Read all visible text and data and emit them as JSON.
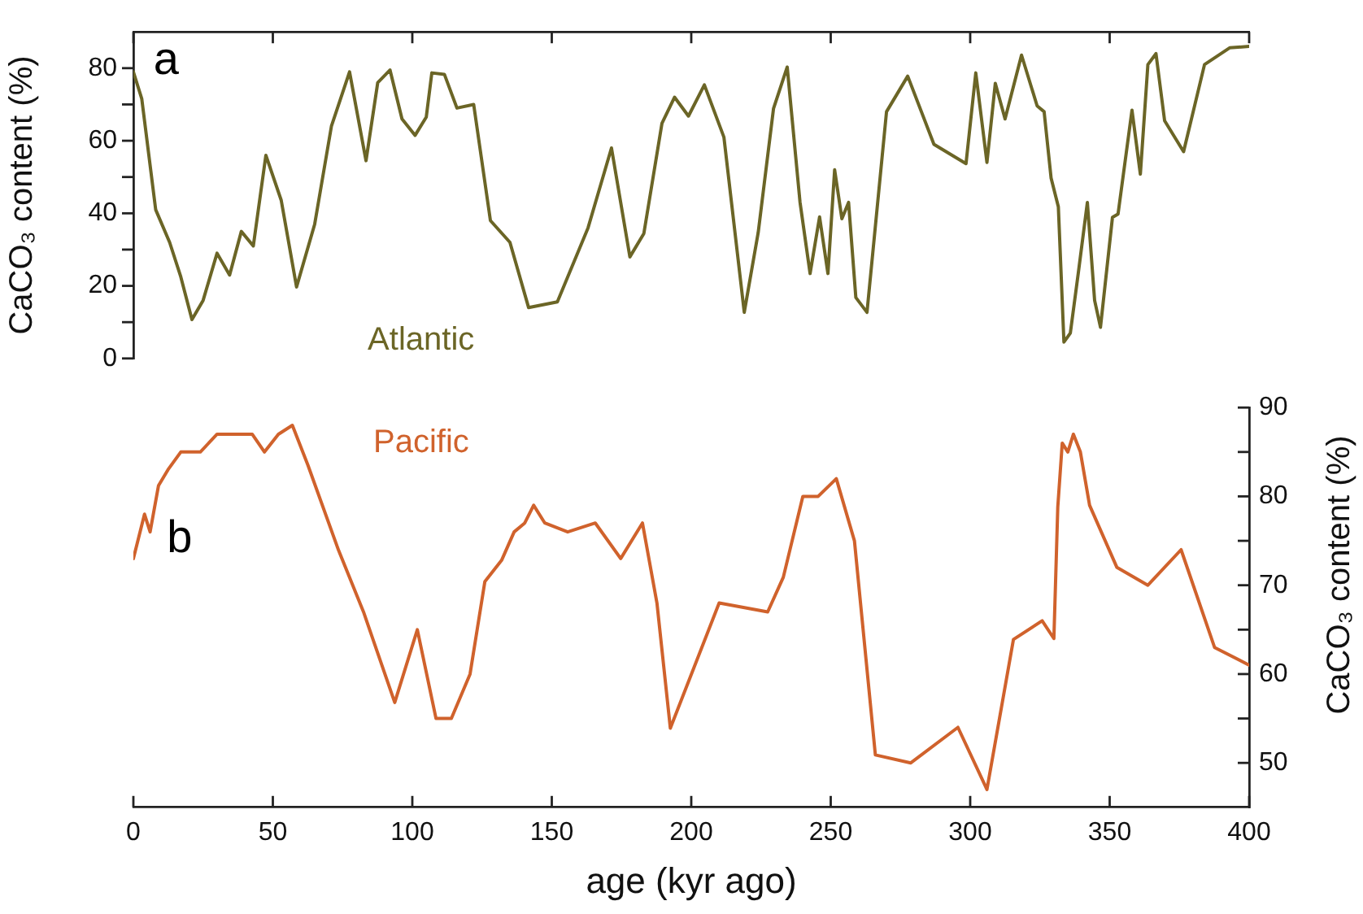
{
  "chart_data": [
    {
      "type": "line",
      "ylabel": "CaCO₃ content (%)",
      "annotations": [
        "a"
      ],
      "xlim": [
        0,
        400
      ],
      "xticks": [
        0,
        50,
        100,
        150,
        200,
        250,
        300,
        350,
        400
      ],
      "ylim": [
        0,
        90
      ],
      "yticks": [
        0,
        {
          "value": 10,
          "label": null
        },
        20,
        {
          "value": 30,
          "label": null
        },
        40,
        {
          "value": 50,
          "label": null
        },
        60,
        {
          "value": 70,
          "label": null
        },
        80
      ],
      "tick_labels": "y",
      "series": [
        {
          "name": "Atlantic",
          "color": "#6b6526",
          "x": [
            0,
            3,
            8,
            13,
            17,
            21,
            25,
            30,
            34.5,
            38.7,
            43,
            47.5,
            53,
            58.5,
            65,
            71,
            77.5,
            83.4,
            87.6,
            92,
            96.3,
            101,
            105,
            107,
            111.5,
            116,
            122,
            128,
            135,
            141.7,
            152,
            163,
            171.4,
            178,
            183,
            189.5,
            194,
            199,
            204.7,
            211.7,
            219,
            224,
            229.5,
            234.4,
            239,
            242.6,
            246,
            249,
            251.4,
            254,
            256.4,
            259,
            263,
            270,
            277.6,
            287,
            298.5,
            302,
            306,
            309,
            312.5,
            318.4,
            324,
            326.5,
            329,
            331.6,
            333.6,
            335.9,
            338.8,
            342,
            344.6,
            346.7,
            351,
            353,
            358,
            361,
            363.7,
            366.6,
            369.7,
            376.5,
            384,
            393,
            400
          ],
          "values": [
            79,
            71.6,
            41,
            32,
            22.5,
            10.7,
            16,
            29,
            23,
            35,
            31,
            56,
            43.6,
            19.7,
            37,
            64,
            79,
            54.5,
            76,
            79.5,
            66,
            61.5,
            66.5,
            78.7,
            78.3,
            69,
            70,
            38,
            32,
            14,
            15.6,
            36,
            58,
            28,
            34.4,
            64.8,
            72,
            66.8,
            75.4,
            61,
            12.7,
            34.7,
            68.9,
            80.3,
            43,
            23.4,
            39,
            23.4,
            52,
            38.5,
            43,
            16.8,
            12.7,
            68,
            77.8,
            59,
            53.7,
            78.7,
            54,
            75.8,
            66,
            83.6,
            69.6,
            68,
            49.7,
            41.8,
            4.5,
            7,
            23.8,
            43,
            16,
            8.6,
            38.9,
            39.8,
            68.4,
            50.8,
            81,
            84,
            65.5,
            57,
            81,
            85.6,
            86
          ]
        }
      ]
    },
    {
      "type": "line",
      "xlabel": "age (kyr ago)",
      "y2label": "CaCO₃ content (%)",
      "annotations": [
        "b"
      ],
      "xlim": [
        0,
        400
      ],
      "xticks": [
        0,
        50,
        100,
        150,
        200,
        250,
        300,
        350,
        400
      ],
      "y2lim": [
        45,
        90
      ],
      "y2ticks": [
        50,
        {
          "value": 55,
          "label": null
        },
        60,
        {
          "value": 65,
          "label": null
        },
        70,
        {
          "value": 75,
          "label": null
        },
        80,
        {
          "value": 85,
          "label": null
        },
        90
      ],
      "series": [
        {
          "name": "Pacific",
          "color": "#d0622c",
          "axis": "y2",
          "x": [
            0,
            4,
            6,
            9,
            12.4,
            17,
            24,
            30,
            42.6,
            47,
            52,
            57,
            62.6,
            73.6,
            82.5,
            93.7,
            101.8,
            108.5,
            114,
            120.7,
            126,
            132,
            136.5,
            140.3,
            143.5,
            147.5,
            155.7,
            165.6,
            174.7,
            182.5,
            187.7,
            192.5,
            210,
            227.4,
            233,
            240,
            245.5,
            252,
            258.5,
            266,
            278.7,
            295.6,
            306,
            315.5,
            325.8,
            330,
            331.4,
            333,
            335,
            337,
            339.5,
            342.8,
            352.6,
            363.7,
            375.6,
            387.6,
            400
          ],
          "values": [
            73,
            78,
            76,
            81.2,
            83,
            85,
            85,
            87,
            87,
            85,
            87,
            88,
            83.5,
            73.9,
            67,
            56.8,
            65,
            55,
            55,
            60,
            70.4,
            72.8,
            76,
            77,
            79,
            77,
            76,
            77,
            73,
            77,
            68,
            53.9,
            68,
            67,
            70.9,
            80,
            80,
            82,
            75,
            50.9,
            50,
            54,
            47,
            63.9,
            66,
            64,
            78.8,
            86,
            85,
            87,
            85,
            79,
            72,
            70,
            74,
            63,
            61
          ]
        }
      ]
    }
  ]
}
